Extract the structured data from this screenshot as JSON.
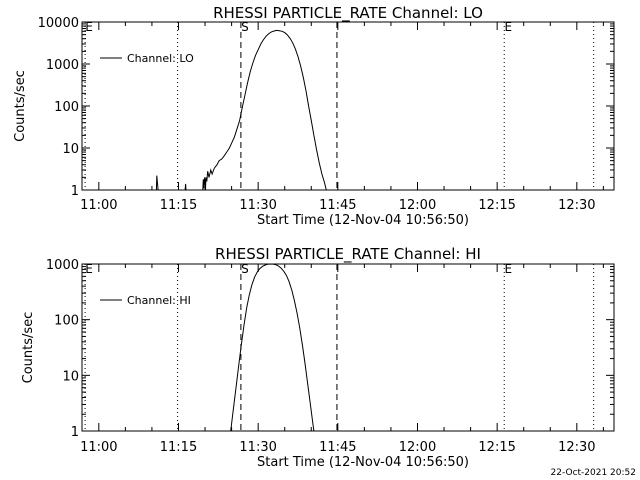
{
  "timestamp": "22-Oct-2021 20:52",
  "chart_data": [
    {
      "type": "line",
      "title": "RHESSI PARTICLE_RATE Channel: LO",
      "xlabel": "Start Time (12-Nov-04 10:56:50)",
      "ylabel": "Counts/sec",
      "y_scale": "log",
      "xlim": [
        "10:56:50",
        "12:37:00"
      ],
      "ylim": [
        1,
        10000
      ],
      "x_ticks": [
        "11:00",
        "11:15",
        "11:30",
        "11:45",
        "12:00",
        "12:15",
        "12:30"
      ],
      "y_ticks": [
        "1",
        "10",
        "100",
        "1000",
        "10000"
      ],
      "legend": "top-left",
      "series": [
        {
          "name": "Channel: LO",
          "points": [
            [
              "11:10:50",
              1
            ],
            [
              "11:10:55",
              2.2
            ],
            [
              "11:11:10",
              1
            ],
            [
              "11:16:15",
              1
            ],
            [
              "11:16:20",
              1.4
            ],
            [
              "11:16:25",
              1
            ],
            [
              "11:19:35",
              1
            ],
            [
              "11:19:40",
              1.8
            ],
            [
              "11:19:45",
              1.1
            ],
            [
              "11:19:55",
              2.0
            ],
            [
              "11:20:05",
              1.0
            ],
            [
              "11:20:10",
              2.0
            ],
            [
              "11:20:20",
              1.6
            ],
            [
              "11:20:30",
              2.8
            ],
            [
              "11:20:45",
              2.0
            ],
            [
              "11:21:05",
              3.0
            ],
            [
              "11:21:20",
              2.4
            ],
            [
              "11:21:45",
              3.3
            ],
            [
              "11:22:15",
              4.0
            ],
            [
              "11:22:40",
              5.0
            ],
            [
              "11:23:10",
              5.5
            ],
            [
              "11:23:35",
              6.5
            ],
            [
              "11:24:05",
              8
            ],
            [
              "11:24:35",
              10
            ],
            [
              "11:25:00",
              13
            ],
            [
              "11:25:30",
              18
            ],
            [
              "11:26:00",
              28
            ],
            [
              "11:26:30",
              45
            ],
            [
              "11:27:00",
              90
            ],
            [
              "11:27:30",
              180
            ],
            [
              "11:28:00",
              350
            ],
            [
              "11:28:30",
              650
            ],
            [
              "11:29:00",
              1050
            ],
            [
              "11:29:30",
              1600
            ],
            [
              "11:30:00",
              2200
            ],
            [
              "11:30:30",
              3000
            ],
            [
              "11:31:00",
              3800
            ],
            [
              "11:31:30",
              4600
            ],
            [
              "11:32:00",
              5300
            ],
            [
              "11:32:30",
              5800
            ],
            [
              "11:33:00",
              6100
            ],
            [
              "11:33:30",
              6300
            ],
            [
              "11:34:00",
              6200
            ],
            [
              "11:34:30",
              6000
            ],
            [
              "11:35:00",
              5600
            ],
            [
              "11:35:30",
              4900
            ],
            [
              "11:36:00",
              4100
            ],
            [
              "11:36:30",
              3200
            ],
            [
              "11:37:00",
              2300
            ],
            [
              "11:37:30",
              1500
            ],
            [
              "11:38:00",
              900
            ],
            [
              "11:38:30",
              480
            ],
            [
              "11:39:00",
              230
            ],
            [
              "11:39:30",
              100
            ],
            [
              "11:40:00",
              45
            ],
            [
              "11:40:30",
              20
            ],
            [
              "11:41:00",
              9
            ],
            [
              "11:41:30",
              4.5
            ],
            [
              "11:42:00",
              2.4
            ],
            [
              "11:42:30",
              1.5
            ],
            [
              "11:42:50",
              1
            ]
          ]
        }
      ],
      "markers": [
        {
          "time": "10:57:25",
          "style": "dotted",
          "label": "E"
        },
        {
          "time": "11:14:50",
          "style": "dotted",
          "label": ""
        },
        {
          "time": "11:26:45",
          "style": "dashed",
          "label": "S"
        },
        {
          "time": "11:44:50",
          "style": "dashed",
          "label": ""
        },
        {
          "time": "12:16:20",
          "style": "dotted",
          "label": "E"
        },
        {
          "time": "12:33:10",
          "style": "dotted",
          "label": ""
        }
      ]
    },
    {
      "type": "line",
      "title": "RHESSI PARTICLE_RATE Channel: HI",
      "xlabel": "Start Time (12-Nov-04 10:56:50)",
      "ylabel": "Counts/sec",
      "y_scale": "log",
      "xlim": [
        "10:56:50",
        "12:37:00"
      ],
      "ylim": [
        1,
        1000
      ],
      "x_ticks": [
        "11:00",
        "11:15",
        "11:30",
        "11:45",
        "12:00",
        "12:15",
        "12:30"
      ],
      "y_ticks": [
        "1",
        "10",
        "100",
        "1000"
      ],
      "legend": "top-left",
      "series": [
        {
          "name": "Channel: HI",
          "points": [
            [
              "11:24:50",
              1
            ],
            [
              "11:25:20",
              2.5
            ],
            [
              "11:25:50",
              6
            ],
            [
              "11:26:20",
              15
            ],
            [
              "11:26:50",
              35
            ],
            [
              "11:27:20",
              80
            ],
            [
              "11:27:50",
              160
            ],
            [
              "11:28:20",
              280
            ],
            [
              "11:28:50",
              430
            ],
            [
              "11:29:20",
              580
            ],
            [
              "11:29:50",
              720
            ],
            [
              "11:30:20",
              830
            ],
            [
              "11:30:50",
              910
            ],
            [
              "11:31:20",
              960
            ],
            [
              "11:31:50",
              990
            ],
            [
              "11:32:20",
              1000
            ],
            [
              "11:32:50",
              995
            ],
            [
              "11:33:20",
              970
            ],
            [
              "11:33:50",
              920
            ],
            [
              "11:34:20",
              840
            ],
            [
              "11:34:50",
              740
            ],
            [
              "11:35:20",
              620
            ],
            [
              "11:35:50",
              480
            ],
            [
              "11:36:20",
              340
            ],
            [
              "11:36:50",
              220
            ],
            [
              "11:37:20",
              130
            ],
            [
              "11:37:50",
              70
            ],
            [
              "11:38:20",
              35
            ],
            [
              "11:38:50",
              16
            ],
            [
              "11:39:20",
              7
            ],
            [
              "11:39:50",
              3
            ],
            [
              "11:40:20",
              1.3
            ],
            [
              "11:40:30",
              1
            ]
          ]
        }
      ],
      "markers": [
        {
          "time": "10:57:25",
          "style": "dotted",
          "label": "E"
        },
        {
          "time": "11:14:50",
          "style": "dotted",
          "label": ""
        },
        {
          "time": "11:26:45",
          "style": "dashed",
          "label": "S"
        },
        {
          "time": "11:44:50",
          "style": "dashed",
          "label": ""
        },
        {
          "time": "12:16:20",
          "style": "dotted",
          "label": "E"
        },
        {
          "time": "12:33:10",
          "style": "dotted",
          "label": ""
        }
      ]
    }
  ]
}
